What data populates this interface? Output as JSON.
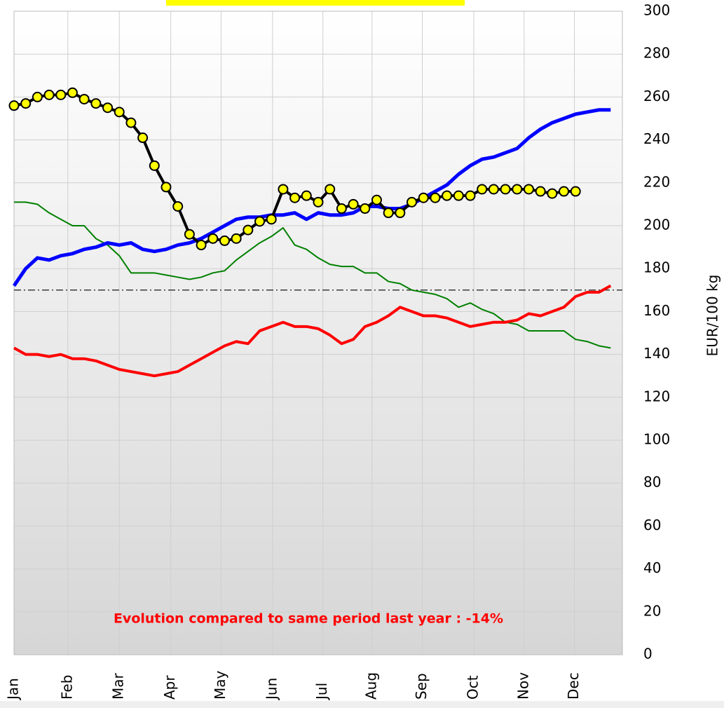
{
  "chart_data": {
    "type": "line",
    "y_label": "EUR/100 kg",
    "annotation": "Evolution compared to same period last year : -14%",
    "reference_line": 170,
    "xlim": [
      0,
      52
    ],
    "xticks": [
      {
        "value": 0,
        "label": "Jan"
      },
      {
        "value": 4.6,
        "label": "Feb"
      },
      {
        "value": 9,
        "label": "Mar"
      },
      {
        "value": 13.4,
        "label": "Apr"
      },
      {
        "value": 17.7,
        "label": "May"
      },
      {
        "value": 22.1,
        "label": "Jun"
      },
      {
        "value": 26.4,
        "label": "Jul"
      },
      {
        "value": 30.6,
        "label": "Aug"
      },
      {
        "value": 34.9,
        "label": "Sep"
      },
      {
        "value": 39.3,
        "label": "Oct"
      },
      {
        "value": 43.6,
        "label": "Nov"
      },
      {
        "value": 47.9,
        "label": "Dec"
      }
    ],
    "ylim": [
      0,
      300
    ],
    "yticks": [
      0,
      20,
      40,
      60,
      80,
      100,
      120,
      140,
      160,
      180,
      200,
      220,
      240,
      260,
      280,
      300
    ],
    "grid": true,
    "x": [
      0,
      1,
      2,
      3,
      4,
      5,
      6,
      7,
      8,
      9,
      10,
      11,
      12,
      13,
      14,
      15,
      16,
      17,
      18,
      19,
      20,
      21,
      22,
      23,
      24,
      25,
      26,
      27,
      28,
      29,
      30,
      31,
      32,
      33,
      34,
      35,
      36,
      37,
      38,
      39,
      40,
      41,
      42,
      43,
      44,
      45,
      46,
      47,
      48,
      49,
      50,
      51
    ],
    "series": [
      {
        "color": "#008000",
        "width": 2,
        "values": [
          211,
          211,
          210,
          206,
          203,
          200,
          200,
          194,
          191,
          186,
          178,
          178,
          178,
          177,
          176,
          175,
          176,
          178,
          179,
          184,
          188,
          192,
          195,
          199,
          191,
          189,
          185,
          182,
          181,
          181,
          178,
          178,
          174,
          173,
          170,
          169,
          168,
          166,
          162,
          164,
          161,
          159,
          155,
          154,
          151,
          151,
          151,
          151,
          147,
          146,
          144,
          143
        ]
      },
      {
        "color": "#ff0000",
        "width": 4,
        "values": [
          143,
          140,
          140,
          139,
          140,
          138,
          138,
          137,
          135,
          133,
          132,
          131,
          130,
          131,
          132,
          135,
          138,
          141,
          144,
          146,
          145,
          151,
          153,
          155,
          153,
          153,
          152,
          149,
          145,
          147,
          153,
          155,
          158,
          162,
          160,
          158,
          158,
          157,
          155,
          153,
          154,
          155,
          155,
          156,
          159,
          158,
          160,
          162,
          167,
          169,
          169,
          172
        ]
      },
      {
        "color": "#0000ff",
        "width": 5,
        "values": [
          172,
          180,
          185,
          184,
          186,
          187,
          189,
          190,
          192,
          191,
          192,
          189,
          188,
          189,
          191,
          192,
          194,
          197,
          200,
          203,
          204,
          204,
          205,
          205,
          206,
          203,
          206,
          205,
          205,
          206,
          209,
          209,
          208,
          208,
          210,
          213,
          216,
          219,
          224,
          228,
          231,
          232,
          234,
          236,
          241,
          245,
          248,
          250,
          252,
          253,
          254,
          254
        ]
      },
      {
        "color": "#000000",
        "width": 4,
        "marker_color": "#ffff00",
        "values": [
          256,
          257,
          260,
          261,
          261,
          262,
          259,
          257,
          255,
          253,
          248,
          241,
          228,
          218,
          209,
          196,
          191,
          194,
          193,
          194,
          198,
          202,
          203,
          217,
          213,
          214,
          211,
          217,
          208,
          210,
          208,
          212,
          206,
          206,
          211,
          213,
          213,
          214,
          214,
          214,
          217,
          217,
          217,
          217,
          217,
          216,
          215,
          216,
          216,
          null,
          null,
          null
        ]
      }
    ]
  }
}
